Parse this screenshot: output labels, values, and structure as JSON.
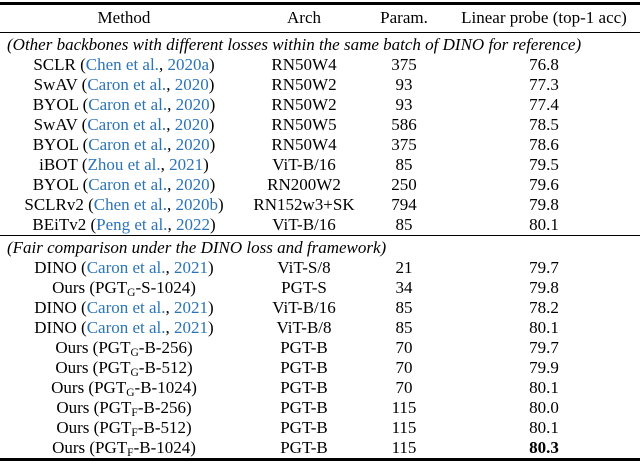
{
  "colors": {
    "citation_blue": "#2b74b8",
    "text_black": "#000000",
    "rule_black": "#000000"
  },
  "table": {
    "columns": [
      "Method",
      "Arch",
      "Param.",
      "Linear probe (top-1 acc)"
    ],
    "sections": [
      {
        "header": "(Other backbones with different losses within the same batch of DINO for reference)",
        "rows": [
          {
            "method": {
              "name": "SCLR",
              "cite_authors": "Chen et al.",
              "cite_year": "2020a"
            },
            "arch": "RN50W4",
            "param": "375",
            "acc": "76.8",
            "acc_bold": false
          },
          {
            "method": {
              "name": "SwAV",
              "cite_authors": "Caron et al.",
              "cite_year": "2020"
            },
            "arch": "RN50W2",
            "param": "93",
            "acc": "77.3",
            "acc_bold": false
          },
          {
            "method": {
              "name": "BYOL",
              "cite_authors": "Caron et al.",
              "cite_year": "2020"
            },
            "arch": "RN50W2",
            "param": "93",
            "acc": "77.4",
            "acc_bold": false
          },
          {
            "method": {
              "name": "SwAV",
              "cite_authors": "Caron et al.",
              "cite_year": "2020"
            },
            "arch": "RN50W5",
            "param": "586",
            "acc": "78.5",
            "acc_bold": false
          },
          {
            "method": {
              "name": "BYOL",
              "cite_authors": "Caron et al.",
              "cite_year": "2020"
            },
            "arch": "RN50W4",
            "param": "375",
            "acc": "78.6",
            "acc_bold": false
          },
          {
            "method": {
              "name": "iBOT",
              "cite_authors": "Zhou et al.",
              "cite_year": "2021"
            },
            "arch": "ViT-B/16",
            "param": "85",
            "acc": "79.5",
            "acc_bold": false
          },
          {
            "method": {
              "name": "BYOL",
              "cite_authors": "Caron et al.",
              "cite_year": "2020"
            },
            "arch": "RN200W2",
            "param": "250",
            "acc": "79.6",
            "acc_bold": false
          },
          {
            "method": {
              "name": "SCLRv2",
              "cite_authors": "Chen et al.",
              "cite_year": "2020b"
            },
            "arch": "RN152w3+SK",
            "param": "794",
            "acc": "79.8",
            "acc_bold": false
          },
          {
            "method": {
              "name": "BEiTv2",
              "cite_authors": "Peng et al.",
              "cite_year": "2022"
            },
            "arch": "ViT-B/16",
            "param": "85",
            "acc": "80.1",
            "acc_bold": false
          }
        ]
      },
      {
        "header": "(Fair comparison under the DINO loss and framework)",
        "rows": [
          {
            "method": {
              "name": "DINO",
              "cite_authors": "Caron et al.",
              "cite_year": "2021"
            },
            "arch": "ViT-S/8",
            "param": "21",
            "acc": "79.7",
            "acc_bold": false
          },
          {
            "method": {
              "name": "Ours",
              "pgt_prefix": "PGT",
              "pgt_sub": "G",
              "pgt_suffix": "-S-1024"
            },
            "arch": "PGT-S",
            "param": "34",
            "acc": "79.8",
            "acc_bold": false
          },
          {
            "method": {
              "name": "DINO",
              "cite_authors": "Caron et al.",
              "cite_year": "2021"
            },
            "arch": "ViT-B/16",
            "param": "85",
            "acc": "78.2",
            "acc_bold": false
          },
          {
            "method": {
              "name": "DINO",
              "cite_authors": "Caron et al.",
              "cite_year": "2021"
            },
            "arch": "ViT-B/8",
            "param": "85",
            "acc": "80.1",
            "acc_bold": false
          },
          {
            "method": {
              "name": "Ours",
              "pgt_prefix": "PGT",
              "pgt_sub": "G",
              "pgt_suffix": "-B-256"
            },
            "arch": "PGT-B",
            "param": "70",
            "acc": "79.7",
            "acc_bold": false
          },
          {
            "method": {
              "name": "Ours",
              "pgt_prefix": "PGT",
              "pgt_sub": "G",
              "pgt_suffix": "-B-512"
            },
            "arch": "PGT-B",
            "param": "70",
            "acc": "79.9",
            "acc_bold": false
          },
          {
            "method": {
              "name": "Ours",
              "pgt_prefix": "PGT",
              "pgt_sub": "G",
              "pgt_suffix": "-B-1024"
            },
            "arch": "PGT-B",
            "param": "70",
            "acc": "80.1",
            "acc_bold": false
          },
          {
            "method": {
              "name": "Ours",
              "pgt_prefix": "PGT",
              "pgt_sub": "F",
              "pgt_suffix": "-B-256"
            },
            "arch": "PGT-B",
            "param": "115",
            "acc": "80.0",
            "acc_bold": false
          },
          {
            "method": {
              "name": "Ours",
              "pgt_prefix": "PGT",
              "pgt_sub": "F",
              "pgt_suffix": "-B-512"
            },
            "arch": "PGT-B",
            "param": "115",
            "acc": "80.1",
            "acc_bold": false
          },
          {
            "method": {
              "name": "Ours",
              "pgt_prefix": "PGT",
              "pgt_sub": "F",
              "pgt_suffix": "-B-1024"
            },
            "arch": "PGT-B",
            "param": "115",
            "acc": "80.3",
            "acc_bold": true
          }
        ]
      }
    ]
  }
}
